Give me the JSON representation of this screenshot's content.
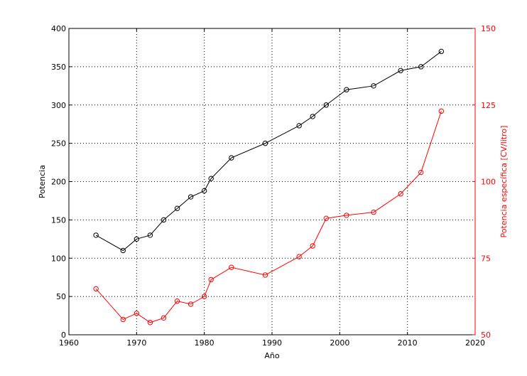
{
  "chart_data": {
    "type": "line",
    "xlabel": "Año",
    "ylabel_left": "Potencia",
    "ylabel_right": "Potencia específica [CV/litro]",
    "xlim": [
      1960,
      2020
    ],
    "ylim_left": [
      0,
      400
    ],
    "ylim_right": [
      50,
      150
    ],
    "x_ticks": [
      1960,
      1970,
      1980,
      1990,
      2000,
      2010,
      2020
    ],
    "y_ticks_left": [
      0,
      50,
      100,
      150,
      200,
      250,
      300,
      350,
      400
    ],
    "y_ticks_right": [
      50,
      75,
      100,
      125,
      150
    ],
    "grid": true,
    "series": [
      {
        "axis": "left",
        "color": "#000000",
        "marker": "circle",
        "x": [
          1964,
          1968,
          1970,
          1972,
          1974,
          1976,
          1978,
          1980,
          1981,
          1984,
          1989,
          1994,
          1996,
          1998,
          2001,
          2005,
          2009,
          2012,
          2015
        ],
        "y": [
          130,
          110,
          125,
          130,
          150,
          165,
          180,
          188,
          204,
          231,
          250,
          273,
          285,
          300,
          320,
          325,
          345,
          350,
          370
        ]
      },
      {
        "axis": "right",
        "color": "#ff0000",
        "marker": "circle",
        "x": [
          1964,
          1968,
          1970,
          1972,
          1974,
          1976,
          1978,
          1980,
          1981,
          1984,
          1989,
          1994,
          1996,
          1998,
          2001,
          2005,
          2009,
          2012,
          2015
        ],
        "y": [
          65,
          55,
          57,
          54,
          55.5,
          61,
          60,
          62.5,
          68,
          72,
          69.5,
          75.5,
          79,
          88,
          89,
          90,
          96,
          103,
          123
        ]
      }
    ]
  }
}
